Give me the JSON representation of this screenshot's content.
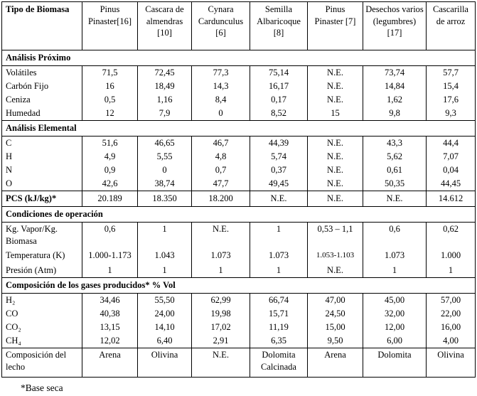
{
  "footnote": "*Base seca",
  "table": {
    "rows": [
      {
        "cells": [
          "Tipo de Biomasa",
          "Pinus Pinaster[16]",
          "Cascara de almendras [10]",
          "Cynara Cardunculus [6]",
          "Semilla Albaricoque [8]",
          "Pinus Pinaster [7]",
          "Desechos varios (legumbres) [17]",
          "Cascarilla de arroz"
        ]
      },
      {
        "label": "Análisis Próximo"
      },
      {
        "cells": [
          "Volátiles",
          "71,5",
          "72,45",
          "77,3",
          "75,14",
          "N.E.",
          "73,74",
          "57,7"
        ]
      },
      {
        "cells": [
          "Carbón Fijo",
          "16",
          "18,49",
          "14,3",
          "16,17",
          "N.E.",
          "14,84",
          "15,4"
        ]
      },
      {
        "cells": [
          "Ceniza",
          "0,5",
          "1,16",
          "8,4",
          "0,17",
          "N.E.",
          "1,62",
          "17,6"
        ]
      },
      {
        "cells": [
          "Humedad",
          "12",
          "7,9",
          "0",
          "8,52",
          "15",
          "9,8",
          "9,3"
        ]
      },
      {
        "label": "Análisis Elemental"
      },
      {
        "cells": [
          "C",
          "51,6",
          "46,65",
          "46,7",
          "44,39",
          "N.E.",
          "43,3",
          "44,4"
        ]
      },
      {
        "cells": [
          "H",
          "4,9",
          "5,55",
          "4,8",
          "5,74",
          "N.E.",
          "5,62",
          "7,07"
        ]
      },
      {
        "cells": [
          "N",
          "0,9",
          "0",
          "0,7",
          "0,37",
          "N.E.",
          "0,61",
          "0,04"
        ]
      },
      {
        "cells": [
          "O",
          "42,6",
          "38,74",
          "47,7",
          "49,45",
          "N.E.",
          "50,35",
          "44,45"
        ]
      },
      {
        "cells": [
          "PCS (kJ/kg)*",
          "20.189",
          "18.350",
          "18.200",
          "N.E.",
          "N.E.",
          "N.E.",
          "14.612"
        ]
      },
      {
        "label": "Condiciones de operación"
      },
      {
        "cells": [
          "Kg. Vapor/Kg. Biomasa",
          "0,6",
          "1",
          "N.E.",
          "1",
          "0,53 – 1,1",
          "0,6",
          "0,62"
        ]
      },
      {
        "cells": [
          "Temperatura (K)",
          "1.000-1.173",
          "1.043",
          "1.073",
          "1.073",
          "1.053-1.103",
          "1.073",
          "1.000"
        ]
      },
      {
        "cells": [
          "Presión (Atm)",
          "1",
          "1",
          "1",
          "1",
          "N.E.",
          "1",
          "1"
        ]
      },
      {
        "label": "Composición de los gases producidos* % Vol"
      },
      {
        "cells": [
          "H₂",
          "34,46",
          "55,50",
          "62,99",
          "66,74",
          "47,00",
          "45,00",
          "57,00"
        ]
      },
      {
        "cells": [
          "CO",
          "40,38",
          "24,00",
          "19,98",
          "15,71",
          "24,50",
          "32,00",
          "22,00"
        ]
      },
      {
        "cells": [
          "CO₂",
          "13,15",
          "14,10",
          "17,02",
          "11,19",
          "15,00",
          "12,00",
          "16,00"
        ]
      },
      {
        "cells": [
          "CH₄",
          "12,02",
          "6,40",
          "2,91",
          "6,35",
          "9,50",
          "6,00",
          "4,00"
        ]
      },
      {
        "cells": [
          "Composición del lecho",
          "Arena",
          "Olivina",
          "N.E.",
          "Dolomita Calcinada",
          "Arena",
          "Dolomita",
          "Olivina"
        ]
      }
    ]
  }
}
